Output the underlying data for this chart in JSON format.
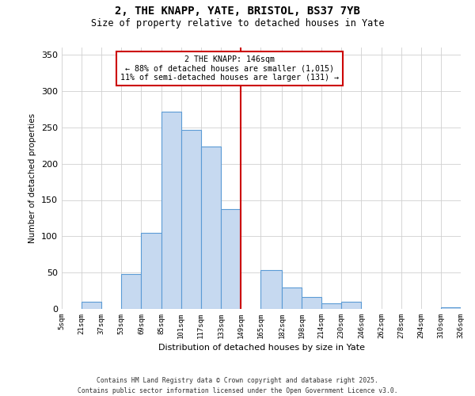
{
  "title": "2, THE KNAPP, YATE, BRISTOL, BS37 7YB",
  "subtitle": "Size of property relative to detached houses in Yate",
  "xlabel": "Distribution of detached houses by size in Yate",
  "ylabel": "Number of detached properties",
  "bar_edges": [
    5,
    21,
    37,
    53,
    69,
    85,
    101,
    117,
    133,
    149,
    165,
    182,
    198,
    214,
    230,
    246,
    262,
    278,
    294,
    310,
    326
  ],
  "bar_heights": [
    0,
    10,
    0,
    48,
    105,
    272,
    246,
    224,
    138,
    0,
    53,
    30,
    16,
    8,
    10,
    0,
    0,
    0,
    0,
    2
  ],
  "bar_color": "#c6d9f0",
  "bar_edge_color": "#5b9bd5",
  "vline_x": 149,
  "vline_color": "#cc0000",
  "annotation_title": "2 THE KNAPP: 146sqm",
  "annotation_line1": "← 88% of detached houses are smaller (1,015)",
  "annotation_line2": "11% of semi-detached houses are larger (131) →",
  "annotation_box_color": "#cc0000",
  "annotation_bg": "#ffffff",
  "ylim": [
    0,
    360
  ],
  "yticks": [
    0,
    50,
    100,
    150,
    200,
    250,
    300,
    350
  ],
  "tick_labels": [
    "5sqm",
    "21sqm",
    "37sqm",
    "53sqm",
    "69sqm",
    "85sqm",
    "101sqm",
    "117sqm",
    "133sqm",
    "149sqm",
    "165sqm",
    "182sqm",
    "198sqm",
    "214sqm",
    "230sqm",
    "246sqm",
    "262sqm",
    "278sqm",
    "294sqm",
    "310sqm",
    "326sqm"
  ],
  "footer1": "Contains HM Land Registry data © Crown copyright and database right 2025.",
  "footer2": "Contains public sector information licensed under the Open Government Licence v3.0.",
  "bg_color": "#ffffff",
  "grid_color": "#d0d0d0",
  "fig_width": 6.0,
  "fig_height": 5.0,
  "fig_dpi": 100
}
